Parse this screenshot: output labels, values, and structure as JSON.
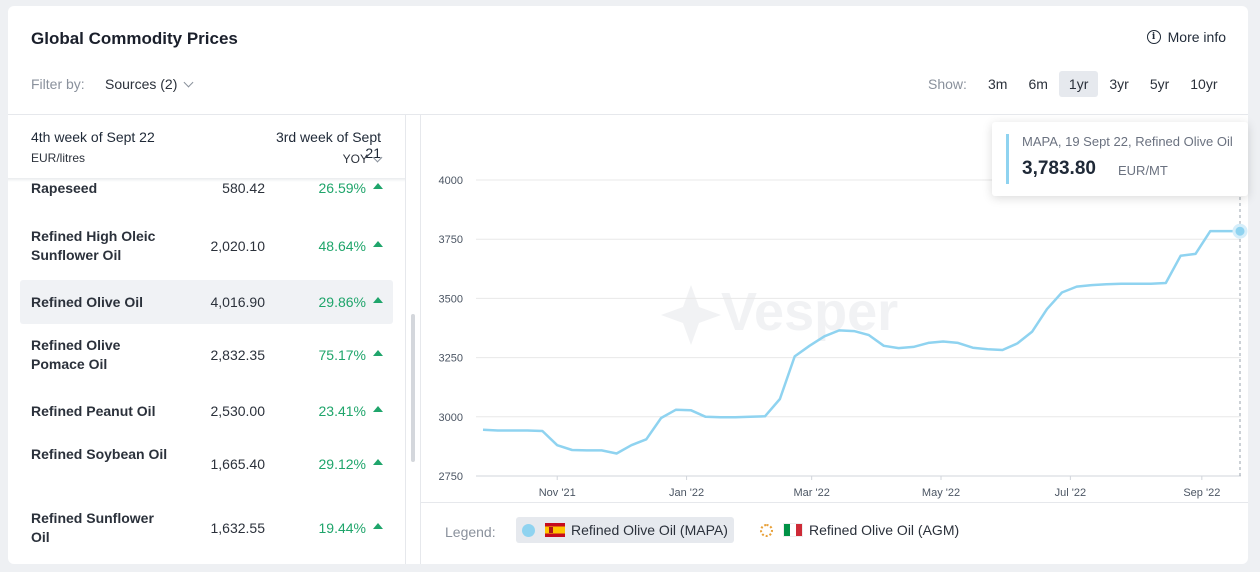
{
  "header": {
    "title": "Global Commodity Prices",
    "more_info": "More info",
    "filter_label": "Filter by:",
    "sources": "Sources (2)",
    "show_label": "Show:",
    "ranges": [
      "3m",
      "6m",
      "1yr",
      "3yr",
      "5yr",
      "10yr"
    ],
    "active_range": "1yr"
  },
  "table": {
    "col_a": "4th week of Sept 22",
    "unit": "EUR/litres",
    "col_b": "3rd week of Sept 21",
    "yoy": "YOY",
    "rows": [
      {
        "name": "Rapeseed",
        "value": "580.42",
        "change": "26.59%"
      },
      {
        "name": "Refined High Oleic Sunflower Oil",
        "value": "2,020.10",
        "change": "48.64%"
      },
      {
        "name": "Refined Olive Oil",
        "value": "4,016.90",
        "change": "29.86%",
        "active": true
      },
      {
        "name": "Refined Olive Pomace Oil",
        "value": "2,832.35",
        "change": "75.17%"
      },
      {
        "name": "Refined Peanut Oil",
        "value": "2,530.00",
        "change": "23.41%"
      },
      {
        "name": "Refined Soybean Oil",
        "value": "1,665.40",
        "change": "29.12%"
      },
      {
        "name": "Refined Sunflower Oil",
        "value": "1,632.55",
        "change": "19.44%"
      }
    ]
  },
  "tooltip": {
    "label": "MAPA, 19 Sept 22, Refined Olive Oil",
    "value": "3,783.80",
    "unit": "EUR/MT"
  },
  "legend": {
    "label": "Legend:",
    "items": [
      "Refined Olive Oil (MAPA)",
      "Refined Olive Oil (AGM)"
    ]
  },
  "watermark": "Vesper",
  "colors": {
    "line": "#8fd3f0",
    "positive": "#1fa56b",
    "grid": "#e8e8e8"
  },
  "chart_data": {
    "type": "line",
    "yticks": [
      2750,
      3000,
      3250,
      3500,
      3750,
      4000
    ],
    "ylim": [
      2750,
      4000
    ],
    "xticks": [
      "Nov '21",
      "Jan '22",
      "Mar '22",
      "May '22",
      "Jul '22",
      "Sep '22"
    ],
    "series": [
      {
        "name": "Refined Olive Oil (MAPA)",
        "x": [
          "2021-09-27",
          "2021-10-04",
          "2021-10-11",
          "2021-10-18",
          "2021-10-25",
          "2021-11-01",
          "2021-11-08",
          "2021-11-15",
          "2021-11-22",
          "2021-11-29",
          "2021-12-06",
          "2021-12-13",
          "2021-12-20",
          "2021-12-27",
          "2022-01-03",
          "2022-01-10",
          "2022-01-17",
          "2022-01-24",
          "2022-01-31",
          "2022-02-07",
          "2022-02-14",
          "2022-02-21",
          "2022-02-28",
          "2022-03-07",
          "2022-03-14",
          "2022-03-21",
          "2022-03-28",
          "2022-04-04",
          "2022-04-11",
          "2022-04-18",
          "2022-04-25",
          "2022-05-02",
          "2022-05-09",
          "2022-05-16",
          "2022-05-23",
          "2022-05-30",
          "2022-06-06",
          "2022-06-13",
          "2022-06-20",
          "2022-06-27",
          "2022-07-04",
          "2022-07-11",
          "2022-07-18",
          "2022-07-25",
          "2022-08-01",
          "2022-08-08",
          "2022-08-15",
          "2022-08-22",
          "2022-08-29",
          "2022-09-05",
          "2022-09-12",
          "2022-09-19"
        ],
        "values": [
          2945,
          2942,
          2942,
          2942,
          2940,
          2880,
          2860,
          2858,
          2858,
          2845,
          2880,
          2905,
          2995,
          3030,
          3028,
          3000,
          2998,
          2998,
          3000,
          3002,
          3075,
          3255,
          3300,
          3340,
          3365,
          3362,
          3345,
          3300,
          3290,
          3295,
          3312,
          3318,
          3312,
          3292,
          3285,
          3282,
          3310,
          3360,
          3455,
          3525,
          3550,
          3556,
          3560,
          3562,
          3562,
          3562,
          3565,
          3680,
          3688,
          3784,
          3784,
          3784
        ]
      }
    ],
    "highlight": {
      "x": "2022-09-19",
      "y": 3783.8
    }
  }
}
